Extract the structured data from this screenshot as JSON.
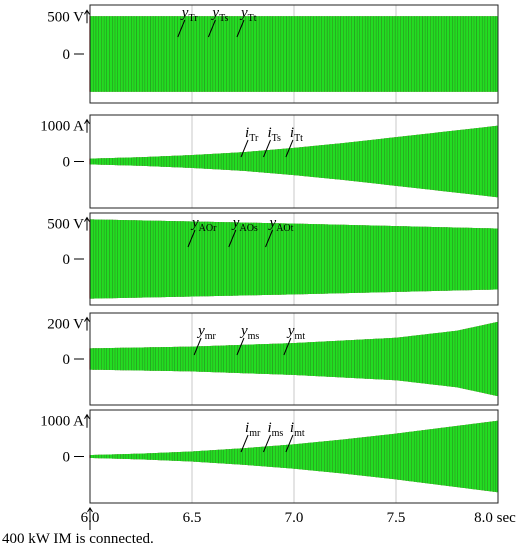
{
  "colors": {
    "phase_r": "#d62020",
    "phase_s": "#1a1a1a",
    "phase_t": "#22dd22"
  },
  "x_axis": {
    "ticks": [
      "6.0",
      "6.5",
      "7.0",
      "7.5",
      "8.0 sec"
    ],
    "tick_values": [
      6.0,
      6.5,
      7.0,
      7.5,
      8.0
    ]
  },
  "annotation": "400 kW IM is connected.",
  "chart_data": [
    {
      "type": "line",
      "ytick_top": "500 V",
      "ytick_zero": "0",
      "labels": [
        {
          "base": "y",
          "sub": "Tr",
          "t": 6.45
        },
        {
          "base": "y",
          "sub": "Ts",
          "t": 6.6
        },
        {
          "base": "y",
          "sub": "Tt",
          "t": 6.74
        }
      ],
      "ylim": [
        -650,
        650
      ],
      "envelope": {
        "t": [
          6.0,
          8.0
        ],
        "amp": [
          500,
          500
        ]
      },
      "series": [
        {
          "name": "y_Tr"
        },
        {
          "name": "y_Ts"
        },
        {
          "name": "y_Tt"
        }
      ]
    },
    {
      "type": "line",
      "ytick_top": "1000 A",
      "ytick_zero": "0",
      "labels": [
        {
          "base": "i",
          "sub": "Tr",
          "t": 6.76
        },
        {
          "base": "i",
          "sub": "Ts",
          "t": 6.87
        },
        {
          "base": "i",
          "sub": "Tt",
          "t": 6.98
        }
      ],
      "ylim": [
        -1300,
        1300
      ],
      "envelope": {
        "t": [
          6.0,
          6.25,
          6.5,
          6.75,
          7.0,
          7.25,
          7.5,
          7.75,
          8.0
        ],
        "amp": [
          80,
          120,
          180,
          260,
          380,
          520,
          680,
          840,
          1000
        ]
      },
      "series": [
        {
          "name": "i_Tr"
        },
        {
          "name": "i_Ts"
        },
        {
          "name": "i_Tt"
        }
      ]
    },
    {
      "type": "line",
      "ytick_top": "500 V",
      "ytick_zero": "0",
      "labels": [
        {
          "base": "y",
          "sub": "AOr",
          "t": 6.5
        },
        {
          "base": "y",
          "sub": "AOs",
          "t": 6.7
        },
        {
          "base": "y",
          "sub": "AOt",
          "t": 6.88
        }
      ],
      "ylim": [
        -650,
        650
      ],
      "envelope": {
        "t": [
          6.0,
          7.0,
          8.0
        ],
        "amp": [
          560,
          500,
          430
        ]
      },
      "series": [
        {
          "name": "y_AOr"
        },
        {
          "name": "y_AOs"
        },
        {
          "name": "y_AOt"
        }
      ]
    },
    {
      "type": "line",
      "ytick_top": "200 V",
      "ytick_zero": "0",
      "labels": [
        {
          "base": "y",
          "sub": "mr",
          "t": 6.53
        },
        {
          "base": "y",
          "sub": "ms",
          "t": 6.74
        },
        {
          "base": "y",
          "sub": "mt",
          "t": 6.97
        }
      ],
      "ylim": [
        -260,
        260
      ],
      "envelope": {
        "t": [
          6.0,
          6.5,
          7.0,
          7.5,
          7.8,
          8.0
        ],
        "amp": [
          60,
          70,
          90,
          120,
          160,
          210
        ]
      },
      "series": [
        {
          "name": "y_mr"
        },
        {
          "name": "y_ms"
        },
        {
          "name": "y_mt"
        }
      ]
    },
    {
      "type": "line",
      "ytick_top": "1000 A",
      "ytick_zero": "0",
      "labels": [
        {
          "base": "i",
          "sub": "mr",
          "t": 6.76
        },
        {
          "base": "i",
          "sub": "ms",
          "t": 6.87
        },
        {
          "base": "i",
          "sub": "mt",
          "t": 6.98
        }
      ],
      "ylim": [
        -1300,
        1300
      ],
      "envelope": {
        "t": [
          6.0,
          6.25,
          6.5,
          6.75,
          7.0,
          7.25,
          7.5,
          7.75,
          8.0
        ],
        "amp": [
          40,
          80,
          140,
          230,
          340,
          480,
          640,
          820,
          1000
        ]
      },
      "series": [
        {
          "name": "i_mr"
        },
        {
          "name": "i_ms"
        },
        {
          "name": "i_mt"
        }
      ]
    }
  ]
}
